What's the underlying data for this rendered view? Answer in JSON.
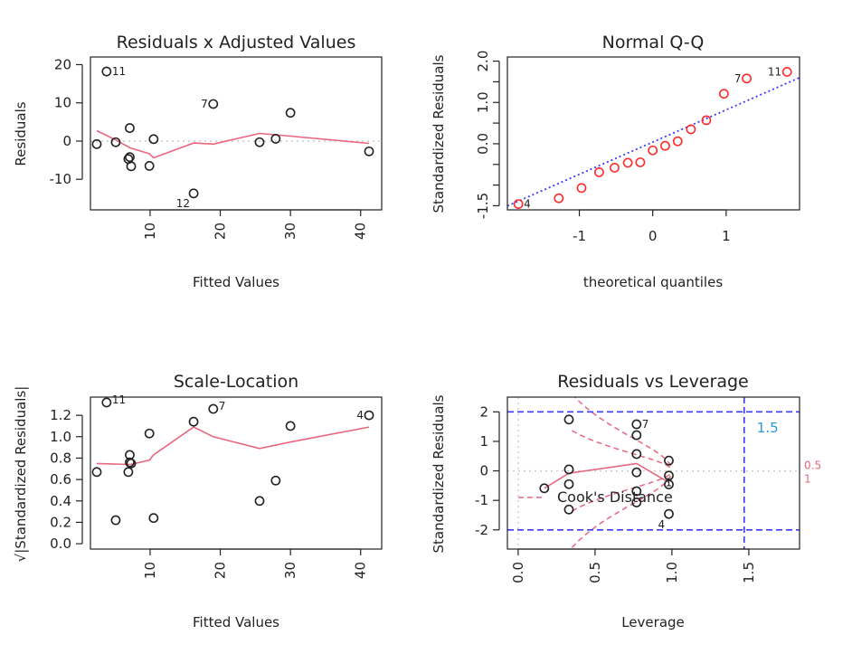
{
  "chart_data": [
    {
      "type": "scatter",
      "title": "Residuals x Adjusted Values",
      "xlabel": "Fitted Values",
      "ylabel": "Residuals",
      "xlim": [
        1.5,
        43
      ],
      "ylim": [
        -18,
        22
      ],
      "xticks": [
        10,
        20,
        30,
        40
      ],
      "yticks": [
        20,
        10,
        0,
        -10
      ],
      "points": [
        {
          "x": 2.4,
          "y": -0.8,
          "label": ""
        },
        {
          "x": 3.8,
          "y": 18.2,
          "label": "11"
        },
        {
          "x": 5.1,
          "y": -0.3,
          "label": ""
        },
        {
          "x": 7.1,
          "y": 3.4,
          "label": ""
        },
        {
          "x": 6.9,
          "y": -4.7,
          "label": ""
        },
        {
          "x": 7.1,
          "y": -4.2,
          "label": ""
        },
        {
          "x": 7.3,
          "y": -6.6,
          "label": ""
        },
        {
          "x": 9.9,
          "y": -6.5,
          "label": ""
        },
        {
          "x": 10.5,
          "y": 0.5,
          "label": ""
        },
        {
          "x": 16.2,
          "y": -13.7,
          "label": "12"
        },
        {
          "x": 19.0,
          "y": 9.7,
          "label": "7"
        },
        {
          "x": 25.6,
          "y": -0.3,
          "label": ""
        },
        {
          "x": 27.9,
          "y": 0.6,
          "label": ""
        },
        {
          "x": 30.0,
          "y": 7.4,
          "label": ""
        },
        {
          "x": 41.2,
          "y": -2.7,
          "label": ""
        }
      ],
      "smooth_line": [
        [
          2.4,
          2.7
        ],
        [
          5.1,
          0.3
        ],
        [
          7.2,
          -1.8
        ],
        [
          9.9,
          -3.3
        ],
        [
          10.5,
          -4.4
        ],
        [
          16.2,
          -0.5
        ],
        [
          19.0,
          -0.8
        ],
        [
          25.6,
          2.0
        ],
        [
          30.0,
          1.3
        ],
        [
          41.2,
          -0.6
        ]
      ],
      "reference_line_y": 0,
      "colors": {
        "points": "#222222",
        "smooth": "#e8677e",
        "reference": "#c8c8c8"
      }
    },
    {
      "type": "scatter",
      "title": "Normal Q-Q",
      "xlabel": "theoretical quantiles",
      "ylabel": "Standardized Residuals",
      "xlim": [
        -1.98,
        2.0
      ],
      "ylim": [
        -1.6,
        2.1
      ],
      "xticks": [
        -1,
        0,
        1
      ],
      "yticks": [
        "2.0",
        "1.5",
        "1.0",
        "0.5",
        "0.0",
        "-0.5",
        "-1.0",
        "-1.5"
      ],
      "ytick_labels_shown": [
        "2.0",
        "1.0",
        "0.0",
        "-1.5"
      ],
      "points": [
        {
          "x": -1.83,
          "y": -1.46,
          "label": "4"
        },
        {
          "x": -1.28,
          "y": -1.32,
          "label": ""
        },
        {
          "x": -0.97,
          "y": -1.07,
          "label": ""
        },
        {
          "x": -0.73,
          "y": -0.69,
          "label": ""
        },
        {
          "x": -0.52,
          "y": -0.58,
          "label": ""
        },
        {
          "x": -0.34,
          "y": -0.46,
          "label": ""
        },
        {
          "x": -0.17,
          "y": -0.45,
          "label": ""
        },
        {
          "x": 0.0,
          "y": -0.16,
          "label": ""
        },
        {
          "x": 0.17,
          "y": -0.05,
          "label": ""
        },
        {
          "x": 0.34,
          "y": 0.06,
          "label": ""
        },
        {
          "x": 0.52,
          "y": 0.35,
          "label": ""
        },
        {
          "x": 0.73,
          "y": 0.57,
          "label": ""
        },
        {
          "x": 0.97,
          "y": 1.21,
          "label": ""
        },
        {
          "x": 1.28,
          "y": 1.58,
          "label": "7"
        },
        {
          "x": 1.83,
          "y": 1.74,
          "label": "11"
        }
      ],
      "reference_line": {
        "intercept": 0.04,
        "slope": 0.78
      },
      "colors": {
        "points": "#ff2a2a",
        "reference": "#3a3aff"
      }
    },
    {
      "type": "scatter",
      "title": "Scale-Location",
      "xlabel": "Fitted Values",
      "ylabel": "√|Standardized Residuals|",
      "xlim": [
        1.5,
        43
      ],
      "ylim": [
        -0.05,
        1.37
      ],
      "xticks": [
        10,
        20,
        30,
        40
      ],
      "yticks": [
        "1.2",
        "1.0",
        "0.8",
        "0.6",
        "0.4",
        "0.2",
        "0.0"
      ],
      "points": [
        {
          "x": 2.4,
          "y": 0.67,
          "label": ""
        },
        {
          "x": 3.8,
          "y": 1.32,
          "label": "11"
        },
        {
          "x": 5.1,
          "y": 0.22,
          "label": ""
        },
        {
          "x": 7.1,
          "y": 0.83,
          "label": ""
        },
        {
          "x": 6.9,
          "y": 0.67,
          "label": ""
        },
        {
          "x": 7.1,
          "y": 0.76,
          "label": ""
        },
        {
          "x": 7.3,
          "y": 0.75,
          "label": ""
        },
        {
          "x": 9.9,
          "y": 1.03,
          "label": ""
        },
        {
          "x": 10.5,
          "y": 0.24,
          "label": ""
        },
        {
          "x": 16.2,
          "y": 1.14,
          "label": ""
        },
        {
          "x": 19.0,
          "y": 1.26,
          "label": "7"
        },
        {
          "x": 25.6,
          "y": 0.4,
          "label": ""
        },
        {
          "x": 27.9,
          "y": 0.59,
          "label": ""
        },
        {
          "x": 30.0,
          "y": 1.1,
          "label": ""
        },
        {
          "x": 41.2,
          "y": 1.2,
          "label": "4"
        }
      ],
      "smooth_line": [
        [
          2.4,
          0.75
        ],
        [
          7.2,
          0.74
        ],
        [
          9.9,
          0.78
        ],
        [
          10.5,
          0.83
        ],
        [
          16.2,
          1.09
        ],
        [
          19.0,
          1.0
        ],
        [
          25.6,
          0.89
        ],
        [
          30.0,
          0.95
        ],
        [
          41.2,
          1.09
        ]
      ],
      "colors": {
        "points": "#222222",
        "smooth": "#e8677e"
      }
    },
    {
      "type": "scatter",
      "title": "Residuals vs Leverage",
      "xlabel": "Leverage",
      "ylabel": "Standardized Residuals",
      "xlim": [
        -0.07,
        1.83
      ],
      "ylim": [
        -2.65,
        2.5
      ],
      "xticks": [
        "0.0",
        "0.5",
        "1.0",
        "1.5"
      ],
      "yticks": [
        2,
        1,
        0,
        -1,
        -2
      ],
      "points": [
        {
          "x": 0.17,
          "y": -0.59,
          "label": ""
        },
        {
          "x": 0.33,
          "y": 1.74,
          "label": ""
        },
        {
          "x": 0.33,
          "y": 0.05,
          "label": ""
        },
        {
          "x": 0.33,
          "y": -0.45,
          "label": ""
        },
        {
          "x": 0.33,
          "y": -1.31,
          "label": ""
        },
        {
          "x": 0.77,
          "y": 1.58,
          "label": "7"
        },
        {
          "x": 0.77,
          "y": 1.21,
          "label": ""
        },
        {
          "x": 0.77,
          "y": 0.57,
          "label": ""
        },
        {
          "x": 0.77,
          "y": -0.05,
          "label": ""
        },
        {
          "x": 0.77,
          "y": -0.69,
          "label": ""
        },
        {
          "x": 0.77,
          "y": -1.07,
          "label": ""
        },
        {
          "x": 0.98,
          "y": 0.35,
          "label": ""
        },
        {
          "x": 0.98,
          "y": -0.16,
          "label": ""
        },
        {
          "x": 0.98,
          "y": -0.46,
          "label": "1"
        },
        {
          "x": 0.98,
          "y": -1.46,
          "label": "4"
        }
      ],
      "smooth_line": [
        [
          0.17,
          -0.59
        ],
        [
          0.33,
          -0.08
        ],
        [
          0.77,
          0.25
        ],
        [
          0.98,
          -0.39
        ]
      ],
      "hlines_dashed": [
        2,
        -2
      ],
      "vline_dashed": 1.47,
      "vline_label": "1.5",
      "cooks_levels": [
        "0.5",
        "1"
      ],
      "legend": {
        "label": "Cook's Distance",
        "position": "left-middle"
      },
      "colors": {
        "points": "#222222",
        "smooth": "#e8677e",
        "cooks": "#e8677e",
        "thresholds": "#3a3aff",
        "vline_label": "#2a9ae0",
        "reference": "#c8c8c8"
      }
    }
  ]
}
